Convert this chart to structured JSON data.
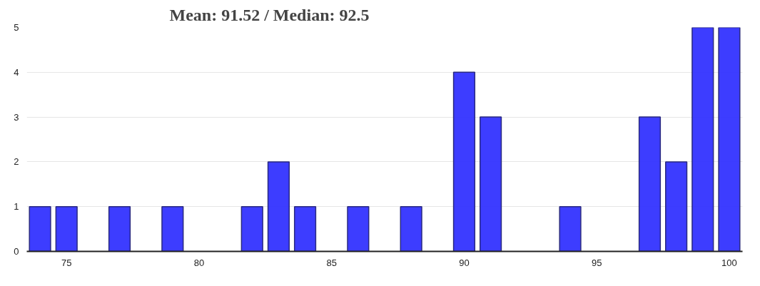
{
  "chart_data": {
    "type": "bar",
    "title": "Mean: 91.52 / Median: 92.5",
    "x": [
      74,
      75,
      77,
      79,
      82,
      83,
      84,
      86,
      88,
      90,
      91,
      94,
      97,
      98,
      99,
      100
    ],
    "values": [
      1,
      1,
      1,
      1,
      1,
      2,
      1,
      1,
      1,
      4,
      3,
      1,
      3,
      2,
      5,
      5
    ],
    "color": "#3333ff",
    "xlim": [
      73.5,
      100.5
    ],
    "xticks": [
      75,
      80,
      85,
      90,
      95,
      100
    ],
    "ylim": [
      0,
      5
    ],
    "yticks": [
      0,
      1,
      2,
      3,
      4,
      5
    ],
    "grid": "y"
  }
}
